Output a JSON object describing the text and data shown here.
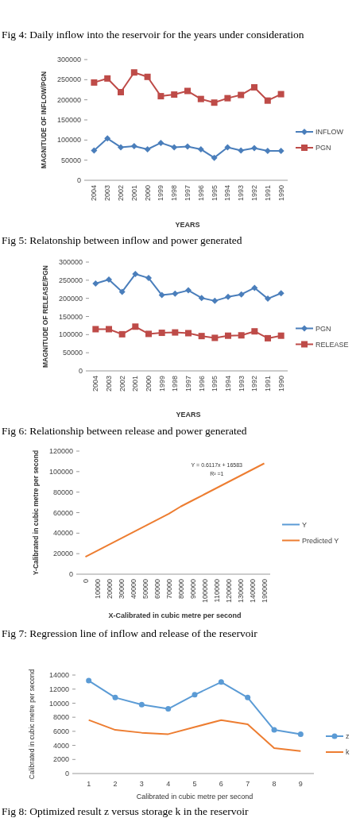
{
  "chart_data": [
    {
      "type": "other",
      "annotations": [
        "Fig 4: Daily inflow into the reservoir for the years under consideration"
      ]
    },
    {
      "type": "line",
      "xlabel": "YEARS",
      "ylabel": "MAGNITUDE OF INFLOW/PGN",
      "categories": [
        "2004",
        "2003",
        "2002",
        "2001",
        "2000",
        "1999",
        "1998",
        "1997",
        "1996",
        "1995",
        "1994",
        "1993",
        "1992",
        "1991",
        "1990"
      ],
      "series": [
        {
          "name": "INFLOW",
          "color": "#4a7ebb",
          "marker": "diamond",
          "values": [
            74000,
            104000,
            82000,
            85000,
            77000,
            93000,
            82000,
            84000,
            77000,
            56000,
            82000,
            74000,
            80000,
            73000,
            73000
          ]
        },
        {
          "name": "PGN",
          "color": "#be4b48",
          "marker": "square",
          "values": [
            243000,
            253000,
            219000,
            268000,
            257000,
            209000,
            213000,
            222000,
            202000,
            193000,
            204000,
            212000,
            231000,
            198000,
            214000
          ]
        }
      ],
      "ylim": [
        0,
        300000
      ],
      "yticks": [
        0,
        50000,
        100000,
        150000,
        200000,
        250000,
        300000
      ],
      "grid": false,
      "legend": "right",
      "annotations": [
        "Fig 5: Relatonship between inflow and power generated"
      ]
    },
    {
      "type": "line",
      "xlabel": "YEARS",
      "ylabel": "MAGNITUDE OF RELEASE/PGN",
      "categories": [
        "2004",
        "2003",
        "2002",
        "2001",
        "2000",
        "1999",
        "1998",
        "1997",
        "1996",
        "1995",
        "1994",
        "1993",
        "1992",
        "1991",
        "1990"
      ],
      "series": [
        {
          "name": "PGN",
          "color": "#4a7ebb",
          "marker": "diamond",
          "values": [
            241000,
            252000,
            218000,
            267000,
            256000,
            209000,
            213000,
            222000,
            201000,
            193000,
            204000,
            211000,
            229000,
            199000,
            214000
          ]
        },
        {
          "name": "RELEASE",
          "color": "#be4b48",
          "marker": "square",
          "values": [
            115000,
            115000,
            101000,
            122000,
            102000,
            105000,
            106000,
            104000,
            96000,
            91000,
            97000,
            98000,
            109000,
            90000,
            97000
          ]
        }
      ],
      "ylim": [
        0,
        300000
      ],
      "yticks": [
        0,
        50000,
        100000,
        150000,
        200000,
        250000,
        300000
      ],
      "grid": false,
      "legend": "right",
      "annotations": [
        "Fig 6: Relationship between release and power generated"
      ]
    },
    {
      "type": "line",
      "xlabel": "X-Calibrated in cubic metre per second",
      "ylabel": "Y-Calibrated in cubic metre per second",
      "categories": [
        "0",
        "10000",
        "20000",
        "30000",
        "40000",
        "50000",
        "60000",
        "70000",
        "80000",
        "90000",
        "100000",
        "110000",
        "120000",
        "130000",
        "140000",
        "190000"
      ],
      "series": [
        {
          "name": "Y",
          "color": "#5b9bd5",
          "marker": "none",
          "values": [
            null,
            null,
            null,
            null,
            null,
            null,
            null,
            null,
            null,
            null,
            null,
            null,
            null,
            null,
            null,
            null
          ]
        },
        {
          "name": "Predicted Y",
          "color": "#ed7d31",
          "marker": "none",
          "values": [
            17000,
            23000,
            29000,
            35000,
            41000,
            47000,
            53000,
            59000,
            66000,
            72000,
            78000,
            84000,
            90000,
            96000,
            102000,
            108000
          ]
        }
      ],
      "ylim": [
        0,
        120000
      ],
      "yticks": [
        0,
        20000,
        40000,
        60000,
        80000,
        100000,
        120000
      ],
      "grid": false,
      "legend": "right",
      "annotations": [
        "Y = 0.6117x + 16583",
        "R² =1",
        "Fig 7: Regression line of inflow and release of the reservoir"
      ]
    },
    {
      "type": "line",
      "xlabel": "Calibrated in cubic metre per second",
      "ylabel": "Calibrated in cubic metre per second",
      "categories": [
        "1",
        "2",
        "3",
        "4",
        "5",
        "6",
        "7",
        "8",
        "9"
      ],
      "series": [
        {
          "name": "z",
          "color": "#5b9bd5",
          "marker": "circle",
          "values": [
            13200,
            10800,
            9800,
            9200,
            11200,
            13000,
            10800,
            6200,
            5600
          ]
        },
        {
          "name": "k",
          "color": "#ed7d31",
          "marker": "none",
          "values": [
            7600,
            6200,
            5800,
            5600,
            6600,
            7600,
            7000,
            3600,
            3200
          ]
        }
      ],
      "ylim": [
        0,
        14000
      ],
      "yticks": [
        0,
        2000,
        4000,
        6000,
        8000,
        10000,
        12000,
        14000
      ],
      "grid": false,
      "legend": "right",
      "annotations": [
        "Fig 8: Optimized result z versus storage k in the reservoir"
      ]
    }
  ]
}
